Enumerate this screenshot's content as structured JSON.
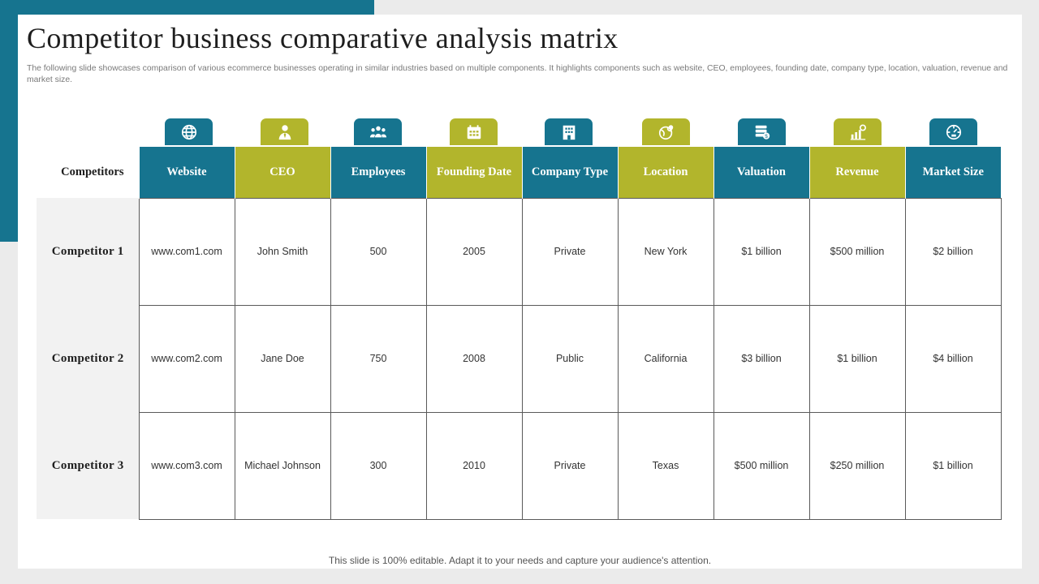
{
  "slide": {
    "title": "Competitor business comparative analysis matrix",
    "subtitle": "The following slide showcases comparison of various ecommerce businesses operating in similar industries based on multiple components. It highlights components such as website, CEO, employees, founding date, company type,  location, valuation, revenue and market size.",
    "footer": "This slide is 100% editable. Adapt it to your needs and capture your audience's attention."
  },
  "colors": {
    "teal": "#16748f",
    "olive": "#b2b52c",
    "row_header_bg": "#f2f2f2"
  },
  "table": {
    "corner_label": "Competitors",
    "columns": [
      {
        "label": "Website",
        "icon": "globe-icon",
        "color": "teal"
      },
      {
        "label": "CEO",
        "icon": "person-tie-icon",
        "color": "olive"
      },
      {
        "label": "Employees",
        "icon": "team-icon",
        "color": "teal"
      },
      {
        "label": "Founding Date",
        "icon": "calendar-icon",
        "color": "olive"
      },
      {
        "label": "Company Type",
        "icon": "building-icon",
        "color": "teal"
      },
      {
        "label": "Location",
        "icon": "globe-pin-icon",
        "color": "olive"
      },
      {
        "label": "Valuation",
        "icon": "money-stack-icon",
        "color": "teal"
      },
      {
        "label": "Revenue",
        "icon": "growth-chart-icon",
        "color": "olive"
      },
      {
        "label": "Market Size",
        "icon": "market-gauge-icon",
        "color": "teal"
      }
    ],
    "rows": [
      {
        "label": "Competitor  1",
        "cells": [
          "www.com1.com",
          "John Smith",
          "500",
          "2005",
          "Private",
          "New York",
          "$1 billion",
          "$500 million",
          "$2 billion"
        ]
      },
      {
        "label": "Competitor  2",
        "cells": [
          "www.com2.com",
          "Jane Doe",
          "750",
          "2008",
          "Public",
          "California",
          "$3 billion",
          "$1 billion",
          "$4 billion"
        ]
      },
      {
        "label": "Competitor  3",
        "cells": [
          "www.com3.com",
          "Michael Johnson",
          "300",
          "2010",
          "Private",
          "Texas",
          "$500 million",
          "$250 million",
          "$1 billion"
        ]
      }
    ]
  }
}
